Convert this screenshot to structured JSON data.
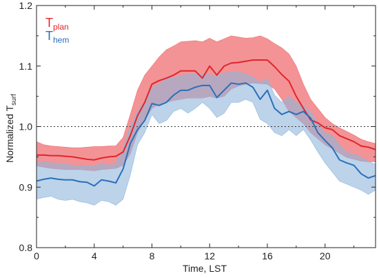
{
  "chart_data": {
    "type": "line",
    "xlabel": "Time, LST",
    "ylabel": {
      "main": "Normalized T",
      "sub": "surf"
    },
    "xlim": [
      0,
      23.5
    ],
    "ylim": [
      0.8,
      1.2
    ],
    "xticks": [
      0,
      4,
      8,
      12,
      16,
      20
    ],
    "yticks": [
      0.8,
      0.9,
      1.0,
      1.1,
      1.2
    ],
    "ytick_labels": [
      "0.8",
      "0.9",
      "1.0",
      "1.1",
      "1.2"
    ],
    "reference_line": {
      "y": 1.0,
      "style": "dotted"
    },
    "legend": {
      "placement": "top-left"
    },
    "x": [
      0,
      0.5,
      1,
      1.5,
      2,
      2.5,
      3,
      3.5,
      4,
      4.5,
      5,
      5.5,
      6,
      6.5,
      7,
      7.5,
      8,
      8.5,
      9,
      9.5,
      10,
      10.5,
      11,
      11.5,
      12,
      12.5,
      13,
      13.5,
      14,
      14.5,
      15,
      15.5,
      16,
      16.5,
      17,
      17.5,
      18,
      18.5,
      19,
      19.5,
      20,
      20.5,
      21,
      21.5,
      22,
      22.5,
      23,
      23.5
    ],
    "series": [
      {
        "name_main": "T",
        "name_sub": "plan",
        "color": "#e0252a",
        "band_color": "#ef6f73",
        "values": [
          0.953,
          0.953,
          0.952,
          0.952,
          0.951,
          0.95,
          0.948,
          0.946,
          0.945,
          0.948,
          0.95,
          0.951,
          0.958,
          0.985,
          1.018,
          1.04,
          1.07,
          1.076,
          1.08,
          1.085,
          1.092,
          1.092,
          1.092,
          1.08,
          1.1,
          1.085,
          1.1,
          1.105,
          1.106,
          1.108,
          1.11,
          1.11,
          1.11,
          1.099,
          1.086,
          1.075,
          1.05,
          1.03,
          1.011,
          1.006,
          0.998,
          0.995,
          0.985,
          0.98,
          0.975,
          0.968,
          0.966,
          0.962
        ],
        "upper": [
          0.975,
          0.97,
          0.968,
          0.967,
          0.966,
          0.965,
          0.965,
          0.966,
          0.967,
          0.967,
          0.968,
          0.968,
          0.982,
          1.02,
          1.06,
          1.085,
          1.1,
          1.115,
          1.127,
          1.133,
          1.14,
          1.141,
          1.142,
          1.14,
          1.146,
          1.14,
          1.145,
          1.15,
          1.148,
          1.146,
          1.147,
          1.15,
          1.145,
          1.137,
          1.13,
          1.12,
          1.1,
          1.07,
          1.045,
          1.03,
          1.015,
          1.005,
          0.998,
          0.992,
          0.986,
          0.979,
          0.975,
          0.972
        ],
        "lower": [
          0.935,
          0.933,
          0.931,
          0.93,
          0.929,
          0.929,
          0.929,
          0.928,
          0.927,
          0.929,
          0.93,
          0.931,
          0.936,
          0.955,
          0.99,
          1.01,
          1.03,
          1.037,
          1.04,
          1.043,
          1.045,
          1.047,
          1.047,
          1.047,
          1.05,
          1.047,
          1.05,
          1.062,
          1.067,
          1.07,
          1.072,
          1.071,
          1.07,
          1.062,
          1.045,
          1.025,
          1.015,
          1.005,
          0.99,
          0.98,
          0.97,
          0.963,
          0.956,
          0.949,
          0.946,
          0.943,
          0.942,
          0.942
        ]
      },
      {
        "name_main": "T",
        "name_sub": "hem",
        "color": "#2a6fb8",
        "band_color": "#8fb6dc",
        "values": [
          0.91,
          0.913,
          0.915,
          0.913,
          0.912,
          0.912,
          0.909,
          0.908,
          0.902,
          0.912,
          0.91,
          0.907,
          0.93,
          0.972,
          0.995,
          1.01,
          1.038,
          1.035,
          1.04,
          1.052,
          1.06,
          1.06,
          1.065,
          1.068,
          1.068,
          1.048,
          1.06,
          1.072,
          1.07,
          1.072,
          1.065,
          1.045,
          1.06,
          1.03,
          1.02,
          1.025,
          1.02,
          1.025,
          1.014,
          0.99,
          0.977,
          0.965,
          0.945,
          0.94,
          0.936,
          0.922,
          0.915,
          0.919
        ],
        "upper": [
          0.94,
          0.942,
          0.94,
          0.94,
          0.938,
          0.936,
          0.936,
          0.935,
          0.934,
          0.94,
          0.936,
          0.94,
          0.963,
          1.0,
          1.025,
          1.043,
          1.065,
          1.07,
          1.08,
          1.08,
          1.085,
          1.086,
          1.087,
          1.088,
          1.085,
          1.085,
          1.088,
          1.09,
          1.09,
          1.087,
          1.082,
          1.073,
          1.08,
          1.052,
          1.04,
          1.05,
          1.04,
          1.035,
          1.025,
          1.005,
          0.99,
          0.985,
          0.97,
          0.958,
          0.955,
          0.95,
          0.942,
          0.938
        ],
        "lower": [
          0.88,
          0.883,
          0.885,
          0.88,
          0.878,
          0.88,
          0.876,
          0.874,
          0.87,
          0.878,
          0.876,
          0.87,
          0.88,
          0.92,
          0.97,
          0.99,
          1.02,
          1.005,
          1.01,
          1.025,
          1.03,
          1.022,
          1.03,
          1.04,
          1.03,
          1.015,
          1.022,
          1.04,
          1.04,
          1.045,
          1.04,
          1.012,
          1.005,
          0.99,
          0.985,
          0.995,
          0.985,
          0.995,
          0.978,
          0.958,
          0.94,
          0.925,
          0.91,
          0.905,
          0.9,
          0.895,
          0.888,
          0.895
        ]
      }
    ]
  }
}
